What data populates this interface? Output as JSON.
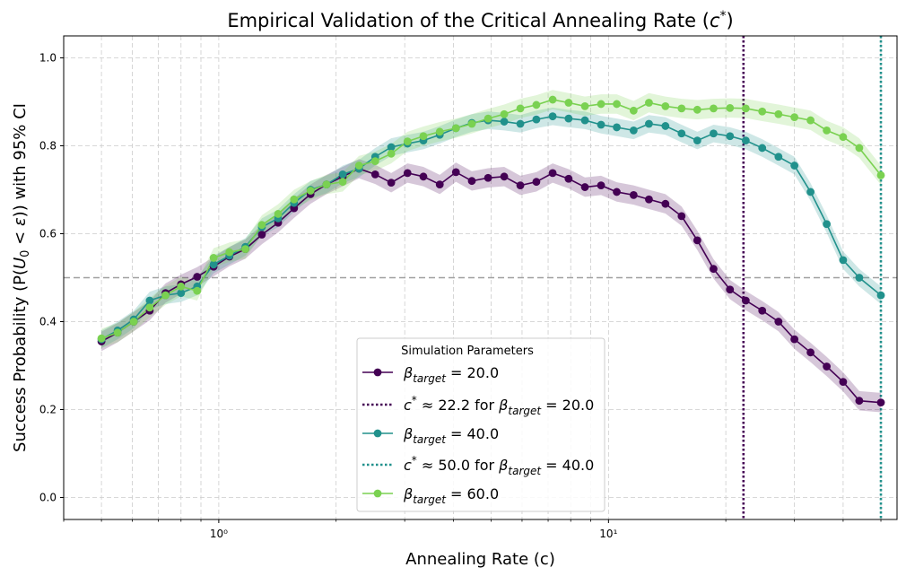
{
  "chart_data": {
    "type": "line",
    "title": "Empirical Validation of the Critical Annealing Rate (c*)",
    "xlabel": "Annealing Rate (c)",
    "ylabel": "Success Probability (P(U₀ < ε)) with 95% CI",
    "x_scale": "log",
    "xlim": [
      0.4,
      55
    ],
    "ylim": [
      -0.05,
      1.05
    ],
    "y_ticks": [
      "0.0",
      "0.2",
      "0.4",
      "0.6",
      "0.8",
      "1.0"
    ],
    "x_major_ticks": [
      {
        "value": 1,
        "label": "10⁰"
      },
      {
        "value": 10,
        "label": "10¹"
      }
    ],
    "grid": true,
    "reference_line": {
      "y": 0.5,
      "style": "dashed",
      "color": "#a0a0a0"
    },
    "x": [
      0.5,
      0.55,
      0.605,
      0.665,
      0.73,
      0.8,
      0.88,
      0.97,
      1.065,
      1.17,
      1.29,
      1.42,
      1.56,
      1.72,
      1.89,
      2.08,
      2.29,
      2.52,
      2.77,
      3.05,
      3.35,
      3.69,
      4.06,
      4.46,
      4.91,
      5.4,
      5.94,
      6.53,
      7.19,
      7.9,
      8.7,
      9.57,
      10.5,
      11.6,
      12.7,
      14.0,
      15.4,
      16.9,
      18.6,
      20.5,
      22.5,
      24.8,
      27.3,
      30.0,
      33.0,
      36.3,
      40.0,
      44.0,
      50.0
    ],
    "series": [
      {
        "name": "βtarget = 20.0",
        "color": "#440154",
        "ci_half_width": 0.022,
        "values": [
          0.355,
          0.375,
          0.4,
          0.425,
          0.465,
          0.485,
          0.502,
          0.525,
          0.548,
          0.565,
          0.598,
          0.625,
          0.658,
          0.69,
          0.712,
          0.73,
          0.748,
          0.735,
          0.716,
          0.738,
          0.73,
          0.712,
          0.74,
          0.72,
          0.727,
          0.73,
          0.71,
          0.718,
          0.738,
          0.725,
          0.706,
          0.71,
          0.695,
          0.688,
          0.678,
          0.668,
          0.64,
          0.585,
          0.52,
          0.473,
          0.448,
          0.425,
          0.4,
          0.36,
          0.33,
          0.298,
          0.263,
          0.22,
          0.216
        ]
      },
      {
        "name": "βtarget = 40.0",
        "color": "#21918c",
        "ci_half_width": 0.02,
        "values": [
          0.36,
          0.38,
          0.405,
          0.448,
          0.46,
          0.465,
          0.48,
          0.53,
          0.55,
          0.57,
          0.615,
          0.635,
          0.67,
          0.7,
          0.712,
          0.735,
          0.748,
          0.775,
          0.797,
          0.805,
          0.812,
          0.825,
          0.84,
          0.852,
          0.858,
          0.855,
          0.85,
          0.86,
          0.867,
          0.862,
          0.858,
          0.848,
          0.842,
          0.835,
          0.85,
          0.845,
          0.828,
          0.812,
          0.828,
          0.822,
          0.812,
          0.795,
          0.775,
          0.755,
          0.695,
          0.622,
          0.54,
          0.5,
          0.46
        ]
      },
      {
        "name": "βtarget = 60.0",
        "color": "#7ad151",
        "ci_half_width": 0.022,
        "values": [
          0.362,
          0.375,
          0.4,
          0.432,
          0.46,
          0.48,
          0.47,
          0.545,
          0.558,
          0.565,
          0.62,
          0.645,
          0.678,
          0.698,
          0.712,
          0.718,
          0.755,
          0.765,
          0.782,
          0.81,
          0.822,
          0.832,
          0.84,
          0.85,
          0.862,
          0.872,
          0.885,
          0.893,
          0.905,
          0.898,
          0.89,
          0.895,
          0.895,
          0.88,
          0.898,
          0.89,
          0.885,
          0.882,
          0.885,
          0.886,
          0.885,
          0.878,
          0.872,
          0.865,
          0.858,
          0.835,
          0.82,
          0.795,
          0.733
        ]
      }
    ],
    "critical_lines": [
      {
        "x": 22.2,
        "color": "#440154",
        "label_lhs": "c* ≈ 22.2 for ",
        "label_beta": "β",
        "label_sub": "target",
        "label_rhs": " = 20.0"
      },
      {
        "x": 50.0,
        "color": "#21918c",
        "label_lhs": "c* ≈ 50.0 for ",
        "label_beta": "β",
        "label_sub": "target",
        "label_rhs": " = 40.0"
      }
    ],
    "legend": {
      "title": "Simulation Parameters",
      "placement": "lower-center",
      "entries": [
        {
          "kind": "series",
          "ref": 0,
          "beta": "β",
          "sub": "target",
          "rhs": " = 20.0"
        },
        {
          "kind": "vline",
          "ref": 0
        },
        {
          "kind": "series",
          "ref": 1,
          "beta": "β",
          "sub": "target",
          "rhs": " = 40.0"
        },
        {
          "kind": "vline",
          "ref": 1
        },
        {
          "kind": "series",
          "ref": 2,
          "beta": "β",
          "sub": "target",
          "rhs": " = 60.0"
        }
      ]
    }
  }
}
